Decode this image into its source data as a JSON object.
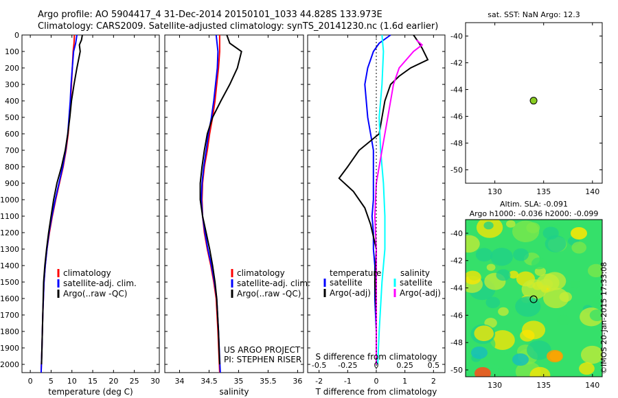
{
  "header": {
    "title_line1": "Argo profile: AO 5904417_4 31-Dec-2014 20150101_1033 44.828S 133.973E",
    "title_line2": "Climatology: CARS2009. Satellite-adjusted climatology: synTS_20141230.nc (1.6d earlier)"
  },
  "chart_data": [
    {
      "type": "line",
      "xlabel": "temperature (deg C)",
      "xlim": [
        -2,
        31
      ],
      "ylim": [
        2050,
        0
      ],
      "xticks": [
        0,
        5,
        10,
        15,
        20,
        25,
        30
      ],
      "yticks": [
        0,
        100,
        200,
        300,
        400,
        500,
        600,
        700,
        800,
        900,
        1000,
        1100,
        1200,
        1300,
        1400,
        1500,
        1600,
        1700,
        1800,
        1900,
        2000
      ],
      "legend": [
        "climatology",
        "satellite-adj. clim.",
        "Argo(..raw -QC)"
      ],
      "colors": {
        "climatology": "#ff0000",
        "satellite": "#0000ff",
        "argo": "#000000"
      },
      "series": [
        {
          "name": "climatology",
          "color": "#ff0000",
          "points": [
            [
              10.6,
              0
            ],
            [
              10.5,
              50
            ],
            [
              10.3,
              100
            ],
            [
              10.1,
              200
            ],
            [
              9.9,
              300
            ],
            [
              9.7,
              400
            ],
            [
              9.4,
              500
            ],
            [
              9.1,
              600
            ],
            [
              8.6,
              700
            ],
            [
              7.9,
              800
            ],
            [
              7.0,
              900
            ],
            [
              6.1,
              1000
            ],
            [
              5.3,
              1100
            ],
            [
              4.6,
              1200
            ],
            [
              4.0,
              1300
            ],
            [
              3.6,
              1400
            ],
            [
              3.3,
              1500
            ],
            [
              3.0,
              1700
            ],
            [
              2.8,
              1900
            ],
            [
              2.6,
              2050
            ]
          ]
        },
        {
          "name": "satellite-adj. clim.",
          "color": "#0000ff",
          "points": [
            [
              11.2,
              0
            ],
            [
              10.9,
              50
            ],
            [
              10.4,
              100
            ],
            [
              10.1,
              200
            ],
            [
              9.8,
              300
            ],
            [
              9.6,
              400
            ],
            [
              9.3,
              500
            ],
            [
              9.0,
              600
            ],
            [
              8.5,
              700
            ],
            [
              7.8,
              800
            ],
            [
              6.9,
              900
            ],
            [
              6.0,
              1000
            ],
            [
              5.2,
              1100
            ],
            [
              4.5,
              1200
            ],
            [
              4.0,
              1300
            ],
            [
              3.6,
              1400
            ],
            [
              3.3,
              1500
            ],
            [
              3.0,
              1700
            ],
            [
              2.8,
              1900
            ],
            [
              2.6,
              2050
            ]
          ]
        },
        {
          "name": "Argo(..raw -QC)",
          "color": "#000000",
          "points": [
            [
              12.5,
              0
            ],
            [
              12.3,
              30
            ],
            [
              11.8,
              60
            ],
            [
              12.0,
              100
            ],
            [
              11.2,
              200
            ],
            [
              10.5,
              300
            ],
            [
              9.9,
              400
            ],
            [
              9.5,
              500
            ],
            [
              9.0,
              600
            ],
            [
              8.4,
              700
            ],
            [
              7.5,
              800
            ],
            [
              6.4,
              900
            ],
            [
              5.6,
              1000
            ],
            [
              5.0,
              1100
            ],
            [
              4.4,
              1200
            ],
            [
              3.9,
              1300
            ],
            [
              3.5,
              1400
            ],
            [
              3.2,
              1500
            ],
            [
              3.0,
              1700
            ],
            [
              2.8,
              1900
            ],
            [
              2.7,
              2000
            ]
          ]
        }
      ]
    },
    {
      "type": "line",
      "xlabel": "salinity",
      "xlim": [
        33.75,
        36.1
      ],
      "ylim": [
        2050,
        0
      ],
      "xticks": [
        34,
        34.5,
        35,
        35.5,
        36
      ],
      "legend": [
        "climatology",
        "satellite-adj. clim.",
        "Argo(..raw -QC)"
      ],
      "annotation": [
        "US ARGO PROJECT",
        "PI: STEPHEN RISER"
      ],
      "series": [
        {
          "name": "climatology",
          "color": "#ff0000",
          "points": [
            [
              34.68,
              0
            ],
            [
              34.68,
              100
            ],
            [
              34.66,
              200
            ],
            [
              34.63,
              300
            ],
            [
              34.6,
              400
            ],
            [
              34.56,
              500
            ],
            [
              34.51,
              600
            ],
            [
              34.47,
              700
            ],
            [
              34.42,
              800
            ],
            [
              34.39,
              900
            ],
            [
              34.38,
              1000
            ],
            [
              34.39,
              1100
            ],
            [
              34.42,
              1200
            ],
            [
              34.47,
              1300
            ],
            [
              34.53,
              1400
            ],
            [
              34.58,
              1500
            ],
            [
              34.62,
              1600
            ],
            [
              34.65,
              1800
            ],
            [
              34.68,
              2050
            ]
          ]
        },
        {
          "name": "satellite-adj. clim.",
          "color": "#0000ff",
          "points": [
            [
              34.62,
              0
            ],
            [
              34.65,
              100
            ],
            [
              34.64,
              200
            ],
            [
              34.61,
              300
            ],
            [
              34.58,
              400
            ],
            [
              34.54,
              500
            ],
            [
              34.49,
              600
            ],
            [
              34.45,
              700
            ],
            [
              34.41,
              800
            ],
            [
              34.38,
              900
            ],
            [
              34.37,
              1000
            ],
            [
              34.39,
              1100
            ],
            [
              34.43,
              1200
            ],
            [
              34.48,
              1300
            ],
            [
              34.54,
              1400
            ],
            [
              34.59,
              1500
            ],
            [
              34.63,
              1600
            ],
            [
              34.66,
              1800
            ],
            [
              34.69,
              2050
            ]
          ]
        },
        {
          "name": "Argo(..raw -QC)",
          "color": "#000000",
          "points": [
            [
              34.8,
              0
            ],
            [
              34.85,
              50
            ],
            [
              35.05,
              100
            ],
            [
              34.98,
              200
            ],
            [
              34.85,
              300
            ],
            [
              34.7,
              400
            ],
            [
              34.56,
              500
            ],
            [
              34.47,
              600
            ],
            [
              34.42,
              700
            ],
            [
              34.38,
              800
            ],
            [
              34.35,
              900
            ],
            [
              34.35,
              1000
            ],
            [
              34.39,
              1100
            ],
            [
              34.45,
              1200
            ],
            [
              34.51,
              1300
            ],
            [
              34.56,
              1400
            ],
            [
              34.6,
              1500
            ],
            [
              34.63,
              1600
            ],
            [
              34.66,
              1800
            ],
            [
              34.68,
              2000
            ]
          ]
        }
      ]
    },
    {
      "type": "line",
      "xlabel": "T difference from climatology",
      "xlabel2": "S difference from climatology",
      "xlim": [
        -2.4,
        2.4
      ],
      "ylim": [
        2050,
        0
      ],
      "xticks": [
        -2,
        -1,
        0,
        1,
        2
      ],
      "xticks_labels": [
        "-2",
        "-1",
        "0",
        "1",
        "2"
      ],
      "sticks": [
        "-0.5",
        "-0.25",
        "0",
        "0.25",
        "0.5"
      ],
      "sticks_pos": [
        -2,
        -1,
        0,
        1,
        2
      ],
      "legend_temp": [
        "temperature",
        "satellite",
        "Argo(-adj)"
      ],
      "legend_sal": [
        "salinity",
        "satellite",
        "Argo(-adj)"
      ],
      "series": [
        {
          "name": "T satellite",
          "color": "#0000ff",
          "points": [
            [
              0.5,
              0
            ],
            [
              0.1,
              50
            ],
            [
              -0.1,
              100
            ],
            [
              -0.3,
              200
            ],
            [
              -0.4,
              300
            ],
            [
              -0.35,
              400
            ],
            [
              -0.3,
              500
            ],
            [
              -0.2,
              600
            ],
            [
              -0.1,
              700
            ],
            [
              -0.1,
              800
            ],
            [
              -0.1,
              900
            ],
            [
              -0.1,
              1000
            ],
            [
              -0.15,
              1100
            ],
            [
              -0.1,
              1200
            ],
            [
              -0.1,
              1300
            ],
            [
              -0.05,
              1400
            ],
            [
              -0.05,
              1600
            ],
            [
              0,
              1800
            ],
            [
              0,
              2000
            ]
          ]
        },
        {
          "name": "T Argo(-adj)",
          "color": "#000000",
          "points": [
            [
              1.3,
              0
            ],
            [
              1.5,
              50
            ],
            [
              1.6,
              80
            ],
            [
              1.8,
              150
            ],
            [
              1.2,
              200
            ],
            [
              0.8,
              250
            ],
            [
              0.5,
              300
            ],
            [
              0.3,
              400
            ],
            [
              0.2,
              500
            ],
            [
              0.1,
              600
            ],
            [
              -0.6,
              700
            ],
            [
              -1.0,
              800
            ],
            [
              -1.3,
              870
            ],
            [
              -0.8,
              950
            ],
            [
              -0.4,
              1050
            ],
            [
              -0.2,
              1150
            ],
            [
              0,
              1300
            ],
            [
              -0.05,
              1500
            ],
            [
              0,
              1700
            ],
            [
              0,
              1900
            ],
            [
              0,
              2000
            ]
          ]
        },
        {
          "name": "S satellite",
          "color": "#00ffff",
          "points": [
            [
              0.2,
              0
            ],
            [
              0.25,
              100
            ],
            [
              0.2,
              300
            ],
            [
              0.1,
              500
            ],
            [
              0.15,
              700
            ],
            [
              0.25,
              900
            ],
            [
              0.3,
              1100
            ],
            [
              0.3,
              1300
            ],
            [
              0.2,
              1500
            ],
            [
              0.1,
              1800
            ],
            [
              0.05,
              2000
            ]
          ]
        },
        {
          "name": "S Argo(-adj)",
          "color": "#ff00ff",
          "points": [
            [
              1.4,
              30
            ],
            [
              1.6,
              60
            ],
            [
              1.3,
              100
            ],
            [
              0.8,
              200
            ],
            [
              0.6,
              300
            ],
            [
              0.4,
              500
            ],
            [
              0.2,
              700
            ],
            [
              0,
              900
            ],
            [
              -0.05,
              1100
            ],
            [
              0,
              1300
            ],
            [
              0,
              1500
            ],
            [
              0,
              1800
            ],
            [
              0,
              2000
            ]
          ]
        }
      ]
    },
    {
      "type": "scatter",
      "title": "sat. SST: NaN Argo: 12.3",
      "xlim": [
        127,
        141
      ],
      "ylim": [
        -51,
        -39
      ],
      "xticks": [
        130,
        135,
        140
      ],
      "yticks": [
        -40,
        -42,
        -44,
        -46,
        -48,
        -50
      ],
      "points": [
        {
          "x": 133.97,
          "y": -44.83,
          "color": "#88cc22"
        }
      ]
    },
    {
      "type": "heatmap",
      "title_line1": "Altim. SLA: -0.091",
      "title_line2": "Argo h1000: -0.036 h2000: -0.099",
      "xlim": [
        127,
        141
      ],
      "ylim": [
        -50.5,
        -39
      ],
      "xticks": [
        130,
        135,
        140
      ],
      "yticks": [
        -40,
        -42,
        -44,
        -46,
        -48,
        -50
      ],
      "marker": {
        "x": 133.97,
        "y": -44.83
      },
      "colors": [
        "#1fd08a",
        "#35e06a",
        "#7fe84a",
        "#c7ec35",
        "#ffe600",
        "#ff9a00",
        "#ff4a1a",
        "#17bfb8"
      ]
    }
  ],
  "watermark": "©IMOS 20-Jan-2015 17:33:08"
}
